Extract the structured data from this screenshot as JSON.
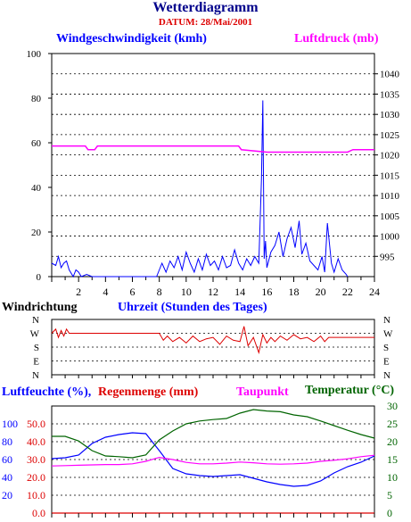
{
  "title": "Wetterdiagramm",
  "subtitle": "DATUM: 28/Mai/2001",
  "colors": {
    "navy": "#00008b",
    "blue": "#0000ff",
    "red": "#dd0000",
    "magenta": "#ff00ff",
    "green": "#006400",
    "grid": "#000000"
  },
  "chart_data": [
    {
      "type": "line",
      "name": "wind_and_pressure",
      "x": [
        0,
        0.3,
        0.5,
        0.7,
        0.9,
        1.1,
        1.3,
        1.6,
        1.8,
        2.0,
        2.2,
        2.6,
        3.0,
        7.8,
        8.0,
        8.2,
        8.5,
        8.8,
        9.1,
        9.4,
        9.7,
        10.0,
        10.3,
        10.6,
        10.9,
        11.2,
        11.5,
        11.8,
        12.1,
        12.4,
        12.7,
        13.0,
        13.3,
        13.6,
        13.9,
        14.2,
        14.5,
        14.8,
        15.1,
        15.4,
        15.6,
        15.7,
        15.8,
        15.9,
        16.0,
        16.3,
        16.6,
        16.9,
        17.2,
        17.5,
        17.8,
        18.1,
        18.4,
        18.6,
        18.9,
        19.2,
        19.5,
        19.8,
        20.1,
        20.3,
        20.5,
        20.8,
        21.0,
        21.3,
        21.6,
        21.9,
        22.0
      ],
      "series": [
        {
          "name": "Windgeschwindigkeit (kmh)",
          "axis": "left",
          "color": "#0000ff",
          "values": [
            6,
            5,
            9,
            4,
            6,
            7,
            3,
            0,
            3,
            2,
            0,
            1,
            0,
            0,
            3,
            6,
            2,
            7,
            4,
            9,
            3,
            11,
            6,
            2,
            8,
            3,
            10,
            5,
            7,
            3,
            9,
            4,
            5,
            12,
            6,
            3,
            8,
            5,
            9,
            6,
            44,
            79,
            8,
            16,
            4,
            11,
            14,
            20,
            9,
            17,
            22,
            13,
            25,
            10,
            15,
            7,
            5,
            3,
            9,
            2,
            24,
            6,
            2,
            8,
            3,
            1,
            0
          ]
        },
        {
          "name": "Luftdruck (mb)",
          "axis": "right",
          "color": "#ff00ff",
          "x": [
            0,
            2.5,
            2.7,
            3.2,
            3.4,
            13.9,
            14.1,
            16.0,
            22.0,
            22.4,
            22.7,
            24
          ],
          "values": [
            1022.2,
            1022.2,
            1021.3,
            1021.3,
            1022.2,
            1022.2,
            1021.3,
            1020.7,
            1020.7,
            1021.3,
            1021.3,
            1021.3
          ]
        }
      ],
      "ylabel_left": "Windgeschwindigkeit (kmh)",
      "ylabel_right": "Luftdruck (mb)",
      "xlabel": "Uhrzeit (Stunden des Tages)",
      "ylim_left": [
        0,
        100
      ],
      "ylim_right": [
        990,
        1045
      ],
      "xlim": [
        0,
        24
      ],
      "yticks_left": [
        0,
        20,
        40,
        60,
        80,
        100
      ],
      "yticks_right": [
        995,
        1000,
        1005,
        1010,
        1015,
        1020,
        1025,
        1030,
        1035,
        1040
      ],
      "xticks": [
        2,
        4,
        6,
        8,
        10,
        12,
        14,
        16,
        18,
        20,
        22,
        24
      ],
      "grid": true
    },
    {
      "type": "line",
      "name": "Windrichtung",
      "title": "Windrichtung",
      "categories_y": [
        "N",
        "W",
        "S",
        "E",
        "N"
      ],
      "x": [
        0,
        0.3,
        0.5,
        0.7,
        0.9,
        1.1,
        1.3,
        8,
        8.3,
        8.6,
        9,
        9.5,
        10,
        10.5,
        11,
        11.5,
        12,
        12.5,
        13,
        13.5,
        14,
        14.3,
        14.6,
        15,
        15.4,
        15.7,
        16,
        16.3,
        16.6,
        17,
        17.5,
        18,
        18.5,
        19,
        19.5,
        20,
        20.3,
        20.6,
        21,
        24
      ],
      "values": [
        1,
        0.7,
        1.3,
        0.8,
        1.2,
        0.7,
        1,
        1,
        1.5,
        1.2,
        1.6,
        1.3,
        1.7,
        1.2,
        1.6,
        1.4,
        1.3,
        1.8,
        1.2,
        1.5,
        1.6,
        0.5,
        1.9,
        1.3,
        2.4,
        1.1,
        1.7,
        1.3,
        1.6,
        1.2,
        1.5,
        1.1,
        1.4,
        1.3,
        1.6,
        1.2,
        1.6,
        1.3,
        1.3,
        1.3
      ],
      "color": "#dd0000",
      "grid": true
    },
    {
      "type": "line",
      "name": "humidity_rain_dew_temp",
      "x": [
        0,
        1,
        2,
        3,
        4,
        5,
        6,
        7,
        8,
        9,
        10,
        11,
        12,
        13,
        14,
        15,
        16,
        17,
        18,
        19,
        20,
        21,
        22,
        23,
        24
      ],
      "series": [
        {
          "name": "Luftfeuchte (%)",
          "axis": "left",
          "color": "#0000ff",
          "values": [
            61,
            62,
            65,
            78,
            85,
            88,
            90,
            89,
            70,
            50,
            44,
            42,
            41,
            42,
            43,
            39,
            35,
            32,
            30,
            31,
            36,
            45,
            52,
            57,
            64
          ]
        },
        {
          "name": "Regenmenge (mm)",
          "axis": "left",
          "color": "#dd0000",
          "values": [
            0,
            0,
            0,
            0,
            0,
            0,
            0,
            0,
            0,
            0,
            0,
            0,
            0,
            0,
            0,
            0,
            0,
            0,
            0,
            0,
            0,
            0,
            0,
            0,
            0
          ]
        },
        {
          "name": "Taupunkt",
          "axis": "right",
          "color": "#ff00ff",
          "values": [
            13.2,
            13.3,
            13.4,
            13.5,
            13.6,
            13.6,
            13.8,
            14.5,
            15.6,
            15.0,
            14.2,
            13.8,
            13.8,
            14.0,
            14.3,
            14.1,
            13.8,
            13.7,
            13.8,
            14.0,
            14.5,
            14.8,
            15.2,
            15.8,
            16.2
          ]
        },
        {
          "name": "Temperatur (°C)",
          "axis": "right",
          "color": "#006400",
          "values": [
            21.5,
            21.5,
            20.2,
            17.5,
            16.0,
            15.8,
            15.5,
            16.3,
            20.5,
            23.0,
            25.0,
            25.8,
            26.2,
            26.5,
            28.0,
            29.0,
            28.6,
            28.4,
            27.5,
            27.0,
            25.8,
            24.5,
            23.2,
            22.0,
            21.0
          ]
        }
      ],
      "ylabel_left": "Luftfeuchte (%)",
      "ylabel_left2": "Regenmenge (mm)",
      "ylabel_right": "Taupunkt",
      "ylabel_right2": "Temperatur (°C)",
      "ylim_left": [
        0,
        120
      ],
      "ylim_left2": [
        0,
        60
      ],
      "ylim_right": [
        0,
        30
      ],
      "yticks_humidity": [
        20,
        40,
        60,
        80,
        100
      ],
      "yticks_rain": [
        "0.0",
        "10.0",
        "20.0",
        "30.0",
        "40.0",
        "50.0"
      ],
      "yticks_temp": [
        0,
        5,
        10,
        15,
        20,
        25,
        30
      ],
      "xlim": [
        0,
        24
      ],
      "grid": true
    }
  ],
  "labels": {
    "title": "Wetterdiagramm",
    "subtitle": "DATUM: 28/Mai/2001",
    "wind_speed": "Windgeschwindigkeit (kmh)",
    "pressure": "Luftdruck (mb)",
    "wind_dir": "Windrichtung",
    "time_axis": "Uhrzeit (Stunden des Tages)",
    "humidity": "Luftfeuchte (%),",
    "rain": "Regenmenge (mm)",
    "dewpoint": "Taupunkt",
    "temperature": "Temperatur (°C)"
  }
}
